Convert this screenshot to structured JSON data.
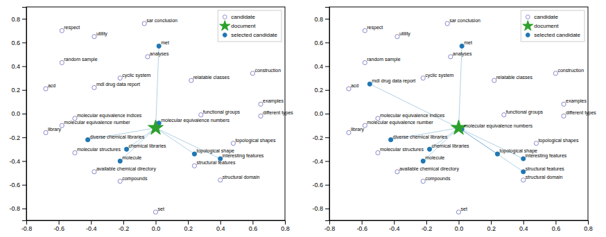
{
  "chart_data": [
    {
      "type": "scatter",
      "series": [
        {
          "name": "candidate",
          "color": "#8888cc",
          "marker": "open-circle",
          "labels": [
            "sar conclusion",
            "respect",
            "utility",
            "random sample",
            "analyses",
            "cyclic system",
            "relatable classes",
            "construction",
            "acd",
            "mdl drug data report",
            "examples",
            "different types",
            "functional groups",
            "molecular equivalence indices",
            "molecular equivalence number",
            "library",
            "molecular structures",
            "available chemical directory",
            "compounds",
            "structural features",
            "structural domain",
            "topological shapes",
            "set"
          ],
          "x": [
            -0.07,
            -0.58,
            -0.38,
            -0.58,
            -0.05,
            -0.22,
            0.22,
            0.6,
            -0.68,
            -0.38,
            0.65,
            0.65,
            0.28,
            -0.5,
            -0.58,
            -0.68,
            -0.5,
            -0.38,
            -0.22,
            0.24,
            0.4,
            0.48,
            0.0
          ],
          "values": [
            0.76,
            0.7,
            0.65,
            0.43,
            0.48,
            0.3,
            0.28,
            0.34,
            0.21,
            0.22,
            0.08,
            -0.02,
            -0.01,
            -0.04,
            -0.1,
            -0.16,
            -0.33,
            -0.49,
            -0.57,
            -0.44,
            -0.56,
            -0.25,
            -0.83
          ]
        },
        {
          "name": "document",
          "color": "#2ca02c",
          "marker": "star",
          "x": [
            0.0
          ],
          "values": [
            -0.12
          ]
        },
        {
          "name": "selected candidate",
          "color": "#1f77b4",
          "marker": "circle",
          "line_style": "solid",
          "labels": [
            "met",
            "molecular equivalence numbers",
            "diverse chemical libraries",
            "chemical libraries",
            "molecule",
            "topological shape",
            "interesting features"
          ],
          "x": [
            0.02,
            0.02,
            -0.42,
            -0.18,
            -0.22,
            0.24,
            0.4
          ],
          "values": [
            0.57,
            -0.08,
            -0.22,
            -0.3,
            -0.4,
            -0.34,
            -0.38
          ]
        }
      ],
      "xlim": [
        -0.8,
        0.8
      ],
      "ylim": [
        -0.9,
        0.9
      ],
      "xticks": [
        -0.8,
        -0.6,
        -0.4,
        -0.2,
        {
          "value": 0.0,
          "label": "0.0"
        },
        0.2,
        0.4,
        0.6,
        0.8
      ],
      "yticks": [
        -0.8,
        -0.6,
        -0.4,
        -0.2,
        {
          "value": 0.0,
          "label": "0.0"
        },
        0.2,
        0.4,
        0.6,
        0.8
      ],
      "grid": false,
      "legend": "upper right"
    },
    {
      "type": "scatter",
      "series": [
        {
          "name": "candidate",
          "color": "#8888cc",
          "marker": "open-circle",
          "labels": [
            "sar conclusion",
            "respect",
            "utility",
            "random sample",
            "analyses",
            "cyclic system",
            "relatable classes",
            "construction",
            "acd",
            "examples",
            "different types",
            "functional groups",
            "molecular equivalence indices",
            "molecular equivalence number",
            "library",
            "molecular structures",
            "available chemical directory",
            "compounds",
            "structural domain",
            "topological shapes",
            "set"
          ],
          "x": [
            -0.07,
            -0.58,
            -0.38,
            -0.58,
            -0.05,
            -0.22,
            0.22,
            0.6,
            -0.68,
            0.65,
            0.65,
            0.28,
            -0.5,
            -0.58,
            -0.68,
            -0.5,
            -0.38,
            -0.22,
            0.4,
            0.48,
            0.0
          ],
          "values": [
            0.76,
            0.7,
            0.65,
            0.43,
            0.48,
            0.3,
            0.28,
            0.34,
            0.21,
            0.08,
            -0.02,
            -0.01,
            -0.04,
            -0.1,
            -0.16,
            -0.33,
            -0.49,
            -0.57,
            -0.56,
            -0.25,
            -0.83
          ]
        },
        {
          "name": "document",
          "color": "#2ca02c",
          "marker": "star",
          "x": [
            0.0
          ],
          "values": [
            -0.12
          ]
        },
        {
          "name": "selected candidate",
          "color": "#1f77b4",
          "marker": "circle",
          "line_style": "solid",
          "labels": [
            "met",
            "molecular equivalence numbers",
            "diverse chemical libraries",
            "chemical libraries",
            "molecule",
            "topological shape",
            "interesting features",
            "structural features",
            "mdl drug data report"
          ],
          "x": [
            0.02,
            0.02,
            -0.42,
            -0.18,
            -0.22,
            0.24,
            0.4,
            0.4,
            -0.55
          ],
          "values": [
            0.57,
            -0.13,
            -0.22,
            -0.3,
            -0.4,
            -0.34,
            -0.38,
            -0.49,
            0.25
          ]
        }
      ],
      "xlim": [
        -0.8,
        0.8
      ],
      "ylim": [
        -0.9,
        0.9
      ],
      "xticks": [
        -0.8,
        -0.6,
        -0.4,
        -0.2,
        {
          "value": 0.0,
          "label": "0.0"
        },
        0.2,
        0.4,
        0.6,
        0.8
      ],
      "yticks": [
        -0.8,
        -0.6,
        -0.4,
        -0.2,
        {
          "value": 0.0,
          "label": "0.0"
        },
        0.2,
        0.4,
        0.6,
        0.8
      ],
      "grid": false,
      "legend": "upper right"
    }
  ]
}
